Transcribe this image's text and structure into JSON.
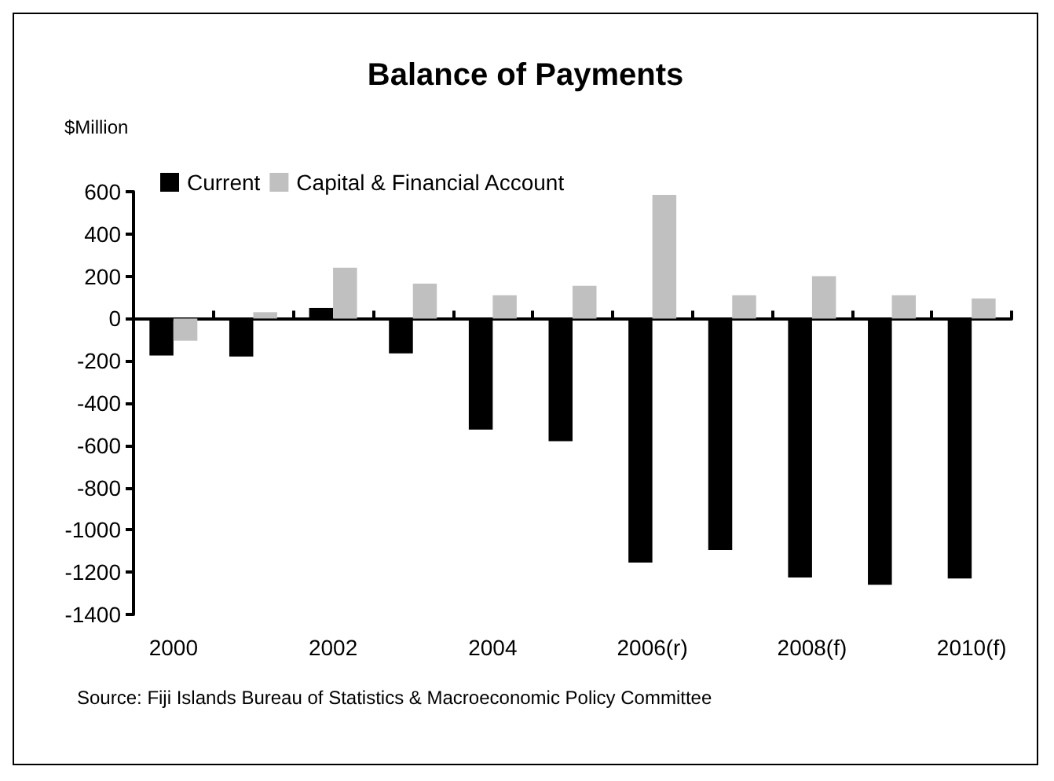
{
  "chart_data": {
    "type": "bar",
    "title": "Balance of Payments",
    "ylabel": "$Million",
    "categories": [
      "2000",
      null,
      "2002",
      null,
      "2004",
      null,
      "2006(r)",
      null,
      "2008(f)",
      null,
      "2010(f)"
    ],
    "series": [
      {
        "name": "Current",
        "color": "#000000",
        "values": [
          -175,
          -180,
          50,
          -165,
          -525,
          -580,
          -1155,
          -1095,
          -1225,
          -1260,
          -1230
        ]
      },
      {
        "name": "Capital & Financial Account",
        "color": "#c0c0c0",
        "values": [
          -105,
          30,
          240,
          165,
          110,
          155,
          585,
          110,
          200,
          110,
          95
        ]
      }
    ],
    "ylim": [
      -1400,
      600
    ],
    "yticks": [
      -1400,
      -1200,
      -1000,
      -800,
      -600,
      -400,
      -200,
      0,
      200,
      400,
      600
    ],
    "legend": "top left",
    "annotations": [
      "Source: Fiji Islands Bureau of Statistics & Macroeconomic Policy Committee"
    ]
  }
}
